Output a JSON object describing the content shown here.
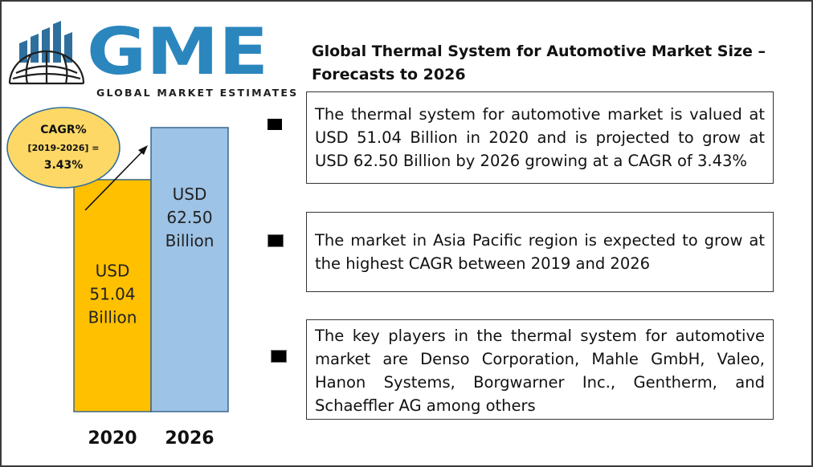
{
  "logo": {
    "letters": "GME",
    "tagline": "GLOBAL MARKET ESTIMATES",
    "colors": {
      "bars": "#2e6f9e",
      "globe": "#1e1e1e",
      "letters": "#2b86bd"
    }
  },
  "title": "Global Thermal System for Automotive Market Size – Forecasts to 2026",
  "bullets": [
    {
      "text": "The thermal system for automotive market is valued at USD 51.04 Billion in 2020 and is projected to grow at USD 62.50 Billion by 2026 growing at a CAGR of 3.43%"
    },
    {
      "text": "The market in Asia Pacific region is expected to grow at the highest CAGR between 2019 and 2026"
    },
    {
      "text": "The key players in the thermal system for automotive market are Denso Corporation, Mahle GmbH, Valeo, Hanon Systems, Borgwarner Inc., Gentherm, and Schaeffler AG among others"
    }
  ],
  "cagr_badge": {
    "line1": "CAGR%",
    "line2": "[2019-2026] =",
    "line3": "3.43%",
    "color": "#fdd866"
  },
  "chart_data": {
    "type": "bar",
    "categories": [
      "2020",
      "2026"
    ],
    "values": [
      51.04,
      62.5
    ],
    "bar_labels": [
      [
        "USD",
        "51.04",
        "Billion"
      ],
      [
        "USD",
        "62.50",
        "Billion"
      ]
    ],
    "colors": [
      "#ffc000",
      "#9dc3e6"
    ],
    "ylim": [
      0,
      62.5
    ],
    "title": "",
    "xlabel": "",
    "ylabel": "",
    "grid": false,
    "legend": "none"
  }
}
